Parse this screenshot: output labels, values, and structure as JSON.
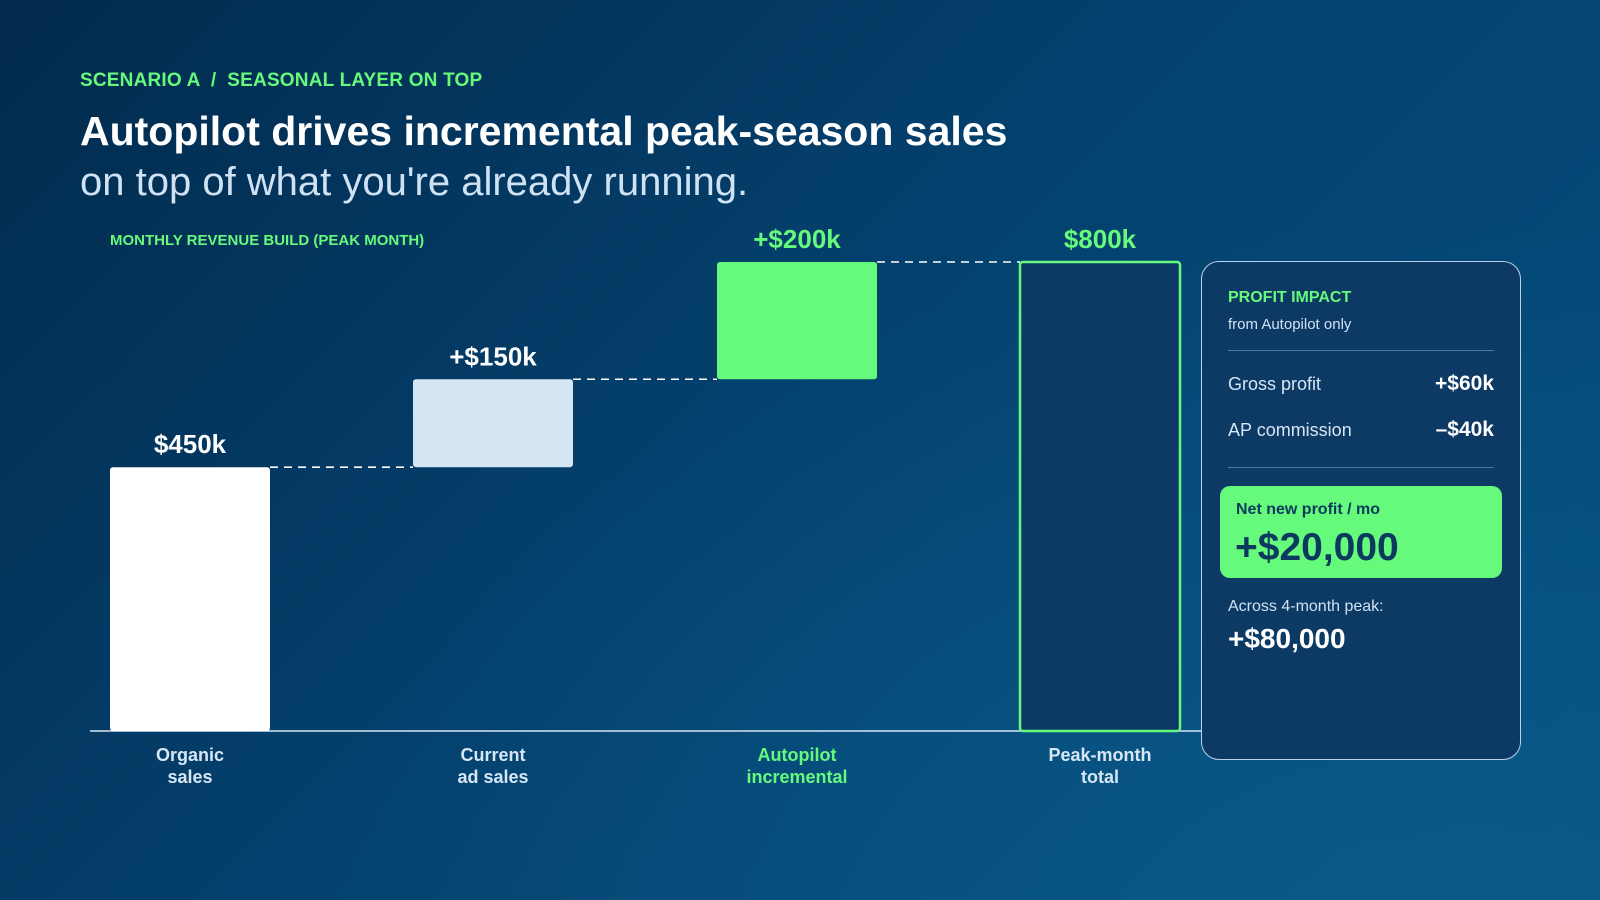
{
  "eyebrow": "SCENARIO A  /  SEASONAL LAYER ON TOP",
  "title": "Autopilot drives incremental peak-season sales",
  "subtitle": "on top of what you're already running.",
  "colors": {
    "accent": "#66fa7c",
    "organic": "#ffffff",
    "current": "#d4e5f4",
    "total_fill": "#0d3a64",
    "label_light": "#d6e6f5"
  },
  "chart_data": {
    "type": "bar",
    "subtype": "waterfall",
    "title": "MONTHLY REVENUE BUILD (PEAK MONTH)",
    "unit": "$k",
    "ylim": [
      0,
      800
    ],
    "categories": [
      "Organic\nsales",
      "Current\nad sales",
      "Autopilot\nincremental",
      "Peak-month\ntotal"
    ],
    "category_lines": [
      [
        "Organic",
        "sales"
      ],
      [
        "Current",
        "ad sales"
      ],
      [
        "Autopilot",
        "incremental"
      ],
      [
        "Peak-month",
        "total"
      ]
    ],
    "values": [
      450,
      150,
      200,
      800
    ],
    "bases": [
      0,
      450,
      600,
      0
    ],
    "data_labels": [
      "$450k",
      "+$150k",
      "+$200k",
      "$800k"
    ],
    "bar_styles": [
      "organic",
      "current",
      "accent",
      "total"
    ],
    "connectors": true,
    "grid": false,
    "legend": false
  },
  "panel": {
    "title": "PROFIT IMPACT",
    "subtitle": "from Autopilot only",
    "rows": [
      {
        "label": "Gross profit",
        "value": "+$60k"
      },
      {
        "label": "AP commission",
        "value": "–$40k"
      }
    ],
    "net_label": "Net new profit / mo",
    "net_value": "+$20,000",
    "across_label": "Across 4-month peak:",
    "across_value": "+$80,000"
  }
}
